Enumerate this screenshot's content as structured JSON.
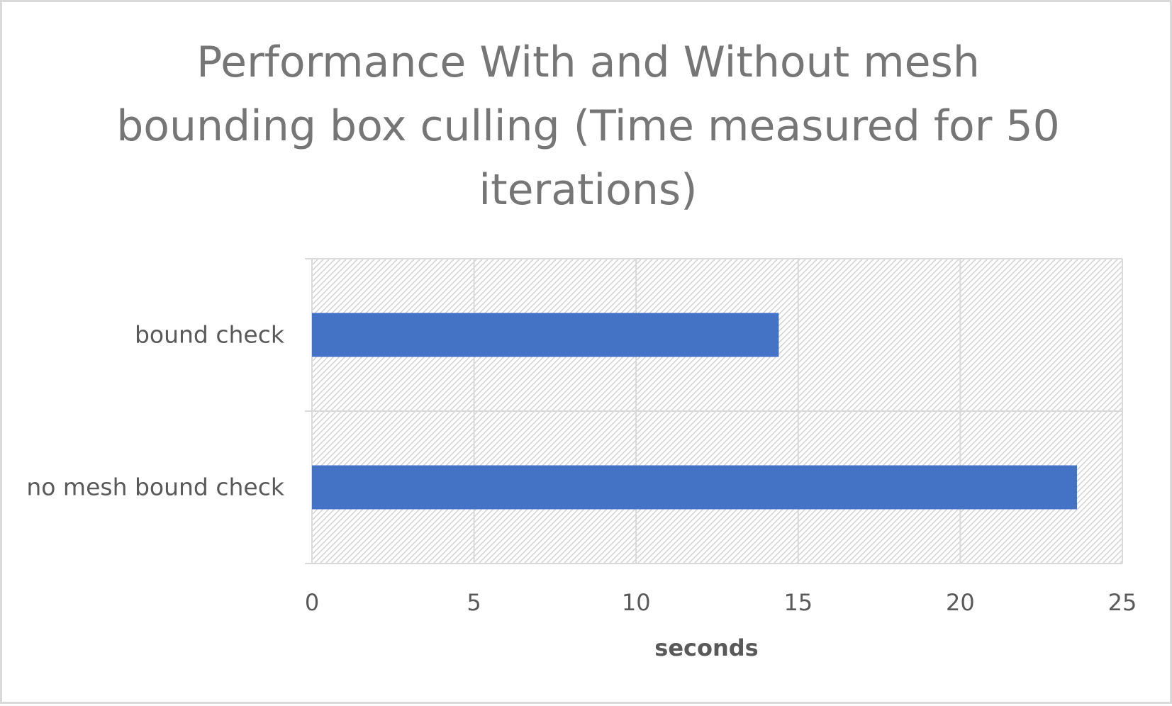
{
  "chart_data": {
    "type": "bar",
    "orientation": "horizontal",
    "title": "Performance With and Without mesh bounding box culling (Time measured for 50 iterations)",
    "categories": [
      "bound check",
      "no mesh bound check"
    ],
    "values": [
      14.4,
      23.6
    ],
    "xlabel": "seconds",
    "ylabel": "",
    "xlim": [
      0,
      25
    ],
    "xticks": [
      0,
      5,
      10,
      15,
      20,
      25
    ],
    "grid": true,
    "legend": "none",
    "bar_color": "#4472c4",
    "plot_background": "hatched light gray"
  }
}
